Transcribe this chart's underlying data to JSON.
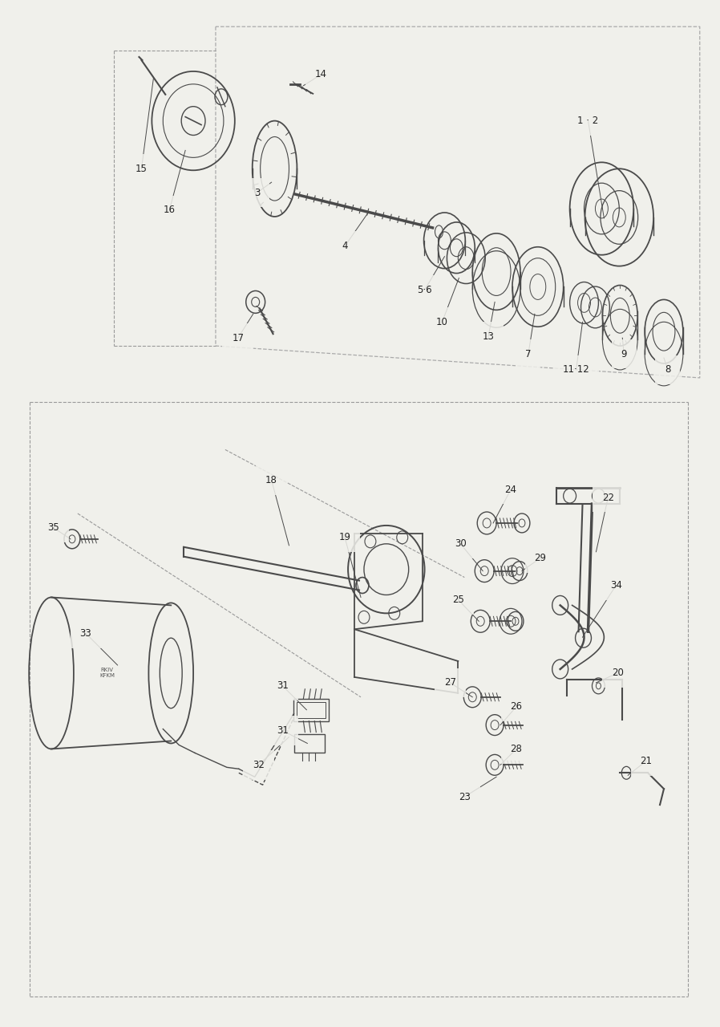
{
  "bg": "#f0f0eb",
  "lc": "#4a4a4a",
  "tc": "#222222",
  "fs": 8.5,
  "fig_w": 8.98,
  "fig_h": 12.8,
  "dpi": 100
}
